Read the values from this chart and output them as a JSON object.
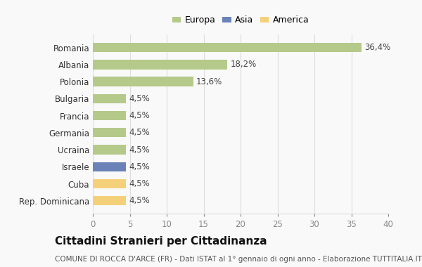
{
  "categories": [
    "Romania",
    "Albania",
    "Polonia",
    "Bulgaria",
    "Francia",
    "Germania",
    "Ucraina",
    "Israele",
    "Cuba",
    "Rep. Dominicana"
  ],
  "values": [
    36.4,
    18.2,
    13.6,
    4.5,
    4.5,
    4.5,
    4.5,
    4.5,
    4.5,
    4.5
  ],
  "labels": [
    "36,4%",
    "18,2%",
    "13,6%",
    "4,5%",
    "4,5%",
    "4,5%",
    "4,5%",
    "4,5%",
    "4,5%",
    "4,5%"
  ],
  "colors": [
    "#b5c98a",
    "#b5c98a",
    "#b5c98a",
    "#b5c98a",
    "#b5c98a",
    "#b5c98a",
    "#b5c98a",
    "#6a82b8",
    "#f5d07a",
    "#f5d07a"
  ],
  "legend": [
    {
      "label": "Europa",
      "color": "#b5c98a"
    },
    {
      "label": "Asia",
      "color": "#6a82b8"
    },
    {
      "label": "America",
      "color": "#f5d07a"
    }
  ],
  "xlim": [
    0,
    40
  ],
  "xticks": [
    0,
    5,
    10,
    15,
    20,
    25,
    30,
    35,
    40
  ],
  "title": "Cittadini Stranieri per Cittadinanza",
  "subtitle": "COMUNE DI ROCCA D'ARCE (FR) - Dati ISTAT al 1° gennaio di ogni anno - Elaborazione TUTTITALIA.IT",
  "bg_color": "#f9f9f9",
  "grid_color": "#dddddd",
  "bar_height": 0.55,
  "label_fontsize": 8.5,
  "title_fontsize": 11,
  "subtitle_fontsize": 7.5
}
